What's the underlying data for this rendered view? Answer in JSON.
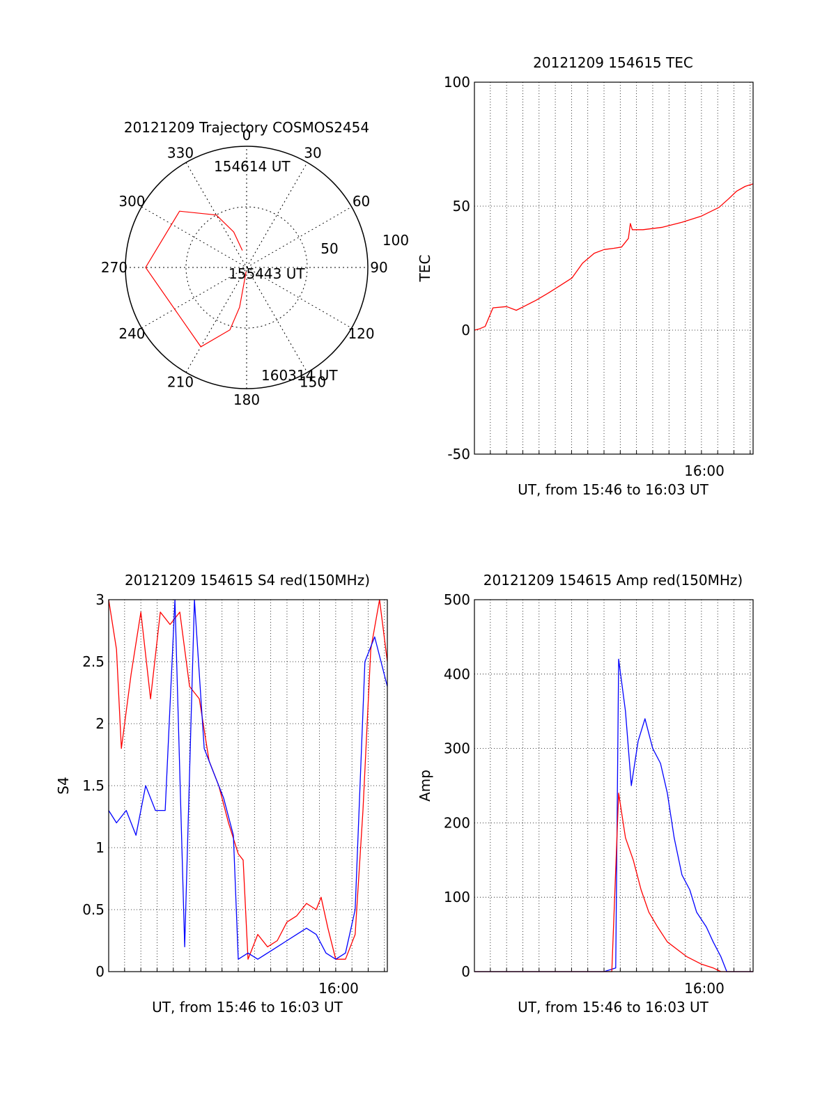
{
  "chart_data": [
    {
      "id": "polar",
      "type": "polar-trajectory",
      "title": "20121209 Trajectory COSMOS2454",
      "azimuth_labels": [
        {
          "az": 0,
          "text": "0"
        },
        {
          "az": 30,
          "text": "30"
        },
        {
          "az": 60,
          "text": "60"
        },
        {
          "az": 90,
          "text": "90"
        },
        {
          "az": 120,
          "text": "120"
        },
        {
          "az": 150,
          "text": "150"
        },
        {
          "az": 180,
          "text": "180"
        },
        {
          "az": 210,
          "text": "210"
        },
        {
          "az": 240,
          "text": "240"
        },
        {
          "az": 270,
          "text": "270"
        },
        {
          "az": 300,
          "text": "300"
        },
        {
          "az": 330,
          "text": "330"
        }
      ],
      "radial_labels": [
        "50",
        "100"
      ],
      "trajectory": [
        {
          "az": 346,
          "el": 77
        },
        {
          "az": 340,
          "el": 62
        },
        {
          "az": 330,
          "el": 45
        },
        {
          "az": 310,
          "el": 25
        },
        {
          "az": 270,
          "el": 15
        },
        {
          "az": 210,
          "el": 22
        },
        {
          "az": 195,
          "el": 42
        },
        {
          "az": 190,
          "el": 60
        },
        {
          "az": 187,
          "el": 87
        }
      ],
      "annotations": [
        "154614 UT",
        "155443 UT",
        "160314 UT"
      ],
      "line_color": "#ff0000"
    },
    {
      "id": "tec",
      "type": "line",
      "title": "20121209 154615 TEC",
      "ylabel": "TEC",
      "xlabel": "UT, from 15:46 to 16:03 UT",
      "xtick_label": "16:00",
      "xlim": [
        15.767,
        16.053
      ],
      "ylim": [
        -50,
        100
      ],
      "yticks": [
        -50,
        0,
        50,
        100
      ],
      "series": [
        {
          "color": "#ff0000",
          "points": [
            [
              15.767,
              0
            ],
            [
              15.772,
              0.5
            ],
            [
              15.778,
              1.5
            ],
            [
              15.786,
              9
            ],
            [
              15.8,
              9.5
            ],
            [
              15.81,
              8
            ],
            [
              15.82,
              10
            ],
            [
              15.83,
              12
            ],
            [
              15.843,
              15
            ],
            [
              15.855,
              18
            ],
            [
              15.867,
              21
            ],
            [
              15.878,
              27
            ],
            [
              15.89,
              31
            ],
            [
              15.9,
              32.5
            ],
            [
              15.91,
              33
            ],
            [
              15.918,
              33.5
            ],
            [
              15.925,
              37
            ],
            [
              15.927,
              43
            ],
            [
              15.929,
              40.5
            ],
            [
              15.94,
              40.5
            ],
            [
              15.96,
              41.5
            ],
            [
              15.98,
              43.5
            ],
            [
              16.0,
              46
            ],
            [
              16.018,
              49.5
            ],
            [
              16.028,
              53
            ],
            [
              16.036,
              56
            ],
            [
              16.045,
              58
            ],
            [
              16.053,
              59
            ]
          ]
        }
      ]
    },
    {
      "id": "s4",
      "type": "line",
      "title": "20121209 154615 S4 red(150MHz)",
      "ylabel": "S4",
      "xlabel": "UT, from 15:46 to 16:03 UT",
      "xtick_label": "16:00",
      "xlim": [
        15.767,
        16.053
      ],
      "ylim": [
        0,
        3
      ],
      "yticks": [
        0,
        0.5,
        1,
        1.5,
        2,
        2.5,
        3
      ],
      "series": [
        {
          "color": "#ff0000",
          "points": [
            [
              15.767,
              3
            ],
            [
              15.775,
              2.6
            ],
            [
              15.78,
              1.8
            ],
            [
              15.79,
              2.4
            ],
            [
              15.8,
              2.9
            ],
            [
              15.81,
              2.2
            ],
            [
              15.82,
              2.9
            ],
            [
              15.83,
              2.8
            ],
            [
              15.84,
              2.9
            ],
            [
              15.85,
              2.3
            ],
            [
              15.86,
              2.2
            ],
            [
              15.87,
              1.7
            ],
            [
              15.88,
              1.5
            ],
            [
              15.89,
              1.2
            ],
            [
              15.9,
              0.95
            ],
            [
              15.905,
              0.9
            ],
            [
              15.91,
              0.1
            ],
            [
              15.92,
              0.3
            ],
            [
              15.93,
              0.2
            ],
            [
              15.94,
              0.25
            ],
            [
              15.95,
              0.4
            ],
            [
              15.96,
              0.45
            ],
            [
              15.97,
              0.55
            ],
            [
              15.98,
              0.5
            ],
            [
              15.985,
              0.6
            ],
            [
              15.992,
              0.35
            ],
            [
              16.0,
              0.1
            ],
            [
              16.01,
              0.1
            ],
            [
              16.02,
              0.3
            ],
            [
              16.028,
              1.3
            ],
            [
              16.036,
              2.6
            ],
            [
              16.045,
              3
            ],
            [
              16.053,
              2.5
            ]
          ]
        },
        {
          "color": "#0000ff",
          "points": [
            [
              15.767,
              1.3
            ],
            [
              15.775,
              1.2
            ],
            [
              15.785,
              1.3
            ],
            [
              15.795,
              1.1
            ],
            [
              15.805,
              1.5
            ],
            [
              15.815,
              1.3
            ],
            [
              15.825,
              1.3
            ],
            [
              15.835,
              3
            ],
            [
              15.845,
              0.2
            ],
            [
              15.855,
              3
            ],
            [
              15.865,
              1.8
            ],
            [
              15.875,
              1.6
            ],
            [
              15.885,
              1.4
            ],
            [
              15.895,
              1.1
            ],
            [
              15.9,
              0.1
            ],
            [
              15.91,
              0.15
            ],
            [
              15.92,
              0.1
            ],
            [
              15.93,
              0.15
            ],
            [
              15.94,
              0.2
            ],
            [
              15.95,
              0.25
            ],
            [
              15.96,
              0.3
            ],
            [
              15.97,
              0.35
            ],
            [
              15.98,
              0.3
            ],
            [
              15.99,
              0.15
            ],
            [
              16.0,
              0.1
            ],
            [
              16.01,
              0.15
            ],
            [
              16.02,
              0.5
            ],
            [
              16.03,
              2.5
            ],
            [
              16.04,
              2.7
            ],
            [
              16.053,
              2.3
            ]
          ]
        }
      ]
    },
    {
      "id": "amp",
      "type": "line",
      "title": "20121209 154615 Amp red(150MHz)",
      "ylabel": "Amp",
      "xlabel": "UT, from 15:46 to 16:03 UT",
      "xtick_label": "16:00",
      "xlim": [
        15.767,
        16.053
      ],
      "ylim": [
        0,
        500
      ],
      "yticks": [
        0,
        100,
        200,
        300,
        400,
        500
      ],
      "series": [
        {
          "color": "#0000ff",
          "points": [
            [
              15.767,
              0
            ],
            [
              15.9,
              0
            ],
            [
              15.912,
              5
            ],
            [
              15.915,
              420
            ],
            [
              15.922,
              350
            ],
            [
              15.928,
              250
            ],
            [
              15.935,
              310
            ],
            [
              15.942,
              340
            ],
            [
              15.95,
              300
            ],
            [
              15.958,
              280
            ],
            [
              15.965,
              240
            ],
            [
              15.972,
              180
            ],
            [
              15.98,
              130
            ],
            [
              15.988,
              110
            ],
            [
              15.995,
              80
            ],
            [
              16.005,
              60
            ],
            [
              16.012,
              40
            ],
            [
              16.02,
              20
            ],
            [
              16.026,
              0
            ],
            [
              16.053,
              0
            ]
          ]
        },
        {
          "color": "#ff0000",
          "points": [
            [
              15.767,
              0
            ],
            [
              15.908,
              0
            ],
            [
              15.915,
              240
            ],
            [
              15.922,
              180
            ],
            [
              15.93,
              150
            ],
            [
              15.938,
              110
            ],
            [
              15.946,
              80
            ],
            [
              15.955,
              60
            ],
            [
              15.965,
              40
            ],
            [
              15.975,
              30
            ],
            [
              15.985,
              20
            ],
            [
              16.0,
              10
            ],
            [
              16.012,
              5
            ],
            [
              16.02,
              0
            ],
            [
              16.053,
              0
            ]
          ]
        }
      ]
    }
  ]
}
